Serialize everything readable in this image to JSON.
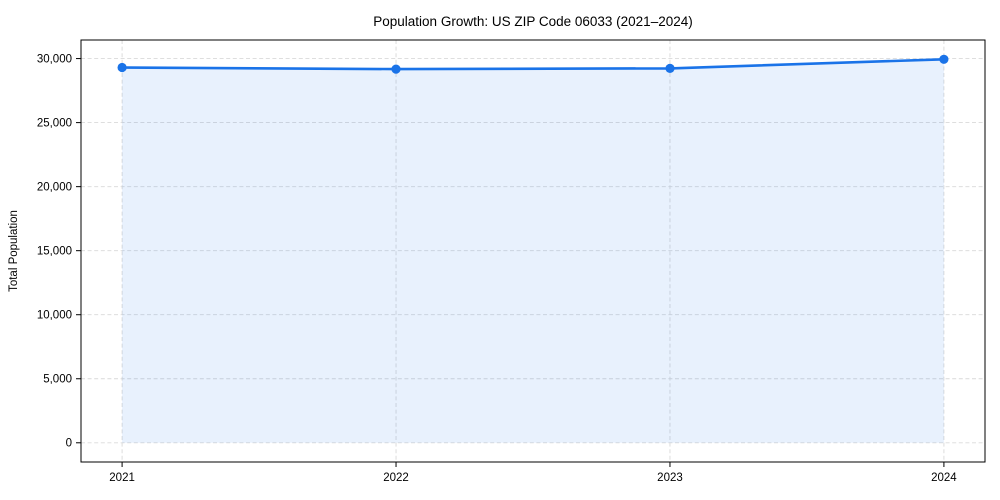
{
  "chart_data": {
    "type": "line",
    "title": "Population Growth: US ZIP Code 06033 (2021–2024)",
    "xlabel": "",
    "ylabel": "Total Population",
    "x": [
      2021,
      2022,
      2023,
      2024
    ],
    "series": [
      {
        "name": "Total Population",
        "values": [
          29300,
          29180,
          29230,
          29940
        ]
      }
    ],
    "x_tick_labels": [
      "2021",
      "2022",
      "2023",
      "2024"
    ],
    "y_ticks": [
      0,
      5000,
      10000,
      15000,
      20000,
      25000,
      30000
    ],
    "y_tick_labels": [
      "0",
      "5,000",
      "10,000",
      "15,000",
      "20,000",
      "25,000",
      "30,000"
    ],
    "xlim": [
      2020.85,
      2024.15
    ],
    "ylim": [
      -1500,
      31450
    ],
    "grid": true,
    "grid_style": "dashed",
    "legend": "none",
    "area_fill_to": 0,
    "colors": {
      "line": "#1a73e8",
      "marker": "#1a73e8",
      "area_fill": "rgba(26,115,232,0.10)",
      "grid": "#d9d9d9",
      "spine": "#000000",
      "text": "#000000",
      "background": "#ffffff"
    }
  }
}
